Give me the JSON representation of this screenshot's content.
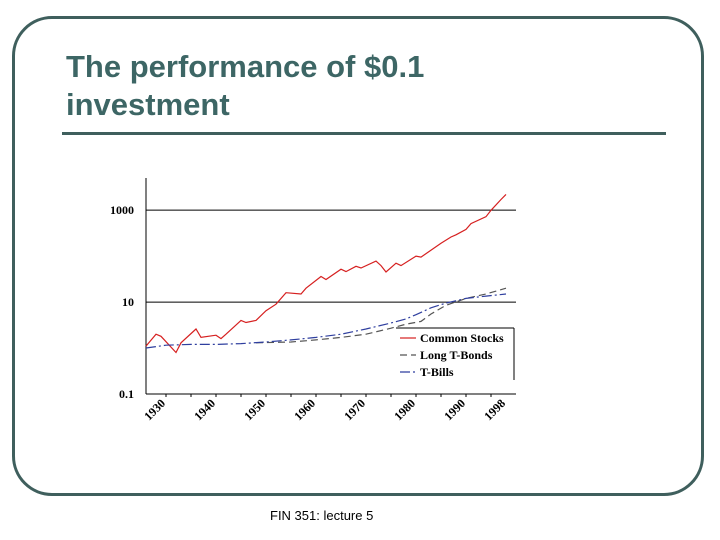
{
  "slide": {
    "title_line1": "The performance of $0.1",
    "title_line2": "investment",
    "footer": "FIN 351: lecture 5"
  },
  "colors": {
    "title": "#3d6665",
    "frame": "#3f5f5d",
    "common_stocks": "#d62020",
    "long_t_bonds": "#555555",
    "t_bills": "#2f3f9f"
  },
  "chart_data": {
    "type": "line",
    "y_scale": "log",
    "ylim": [
      0.1,
      5000
    ],
    "xlim": [
      1926,
      2000
    ],
    "y_ticks": [
      {
        "value": 0.1,
        "label": "0.1"
      },
      {
        "value": 10,
        "label": "10"
      },
      {
        "value": 1000,
        "label": "1000"
      }
    ],
    "x_ticks": [
      {
        "value": 1930,
        "label": "1930"
      },
      {
        "value": 1940,
        "label": "1940"
      },
      {
        "value": 1950,
        "label": "1950"
      },
      {
        "value": 1960,
        "label": "1960"
      },
      {
        "value": 1970,
        "label": "1970"
      },
      {
        "value": 1980,
        "label": "1980"
      },
      {
        "value": 1990,
        "label": "1990"
      },
      {
        "value": 1998,
        "label": "1998"
      }
    ],
    "grid_y": true,
    "legend_position": "bottom-right",
    "series": [
      {
        "name": "Common Stocks",
        "color": "#d62020",
        "dash": "",
        "x": [
          1926,
          1928,
          1929,
          1932,
          1933,
          1936,
          1937,
          1940,
          1941,
          1942,
          1945,
          1946,
          1948,
          1950,
          1952,
          1954,
          1957,
          1958,
          1961,
          1962,
          1965,
          1966,
          1968,
          1969,
          1972,
          1973,
          1974,
          1976,
          1977,
          1980,
          1981,
          1985,
          1987,
          1988,
          1990,
          1991,
          1994,
          1995,
          1997,
          1998
        ],
        "y": [
          1.1,
          2.0,
          1.8,
          0.8,
          1.3,
          2.6,
          1.7,
          1.9,
          1.6,
          2.0,
          4.0,
          3.6,
          4.0,
          6.5,
          9.0,
          16.0,
          15.0,
          20.0,
          36.0,
          31.0,
          52.0,
          46.0,
          60.0,
          55.0,
          78.0,
          62.0,
          45.0,
          70.0,
          62.0,
          100.0,
          95.0,
          190.0,
          260.0,
          290.0,
          380.0,
          510.0,
          720.0,
          990.0,
          1700.0,
          2200.0
        ]
      },
      {
        "name": "Long T-Bonds",
        "color": "#555555",
        "dash": "7 4",
        "x": [
          1948,
          1955,
          1960,
          1965,
          1970,
          1975,
          1978,
          1981,
          1983,
          1986,
          1990,
          1994,
          1998
        ],
        "y": [
          1.3,
          1.35,
          1.5,
          1.7,
          2.0,
          2.7,
          3.3,
          3.8,
          5.5,
          8.5,
          12,
          15,
          20
        ]
      },
      {
        "name": "T-Bills",
        "color": "#2f3f9f",
        "dash": "10 3 2 3",
        "x": [
          1926,
          1930,
          1935,
          1940,
          1945,
          1950,
          1955,
          1960,
          1965,
          1970,
          1975,
          1978,
          1980,
          1983,
          1986,
          1990,
          1994,
          1998
        ],
        "y": [
          1.0,
          1.15,
          1.2,
          1.2,
          1.25,
          1.35,
          1.5,
          1.7,
          2.0,
          2.6,
          3.5,
          4.3,
          5.3,
          7.5,
          9.5,
          12.0,
          13.5,
          15.0
        ]
      }
    ]
  }
}
